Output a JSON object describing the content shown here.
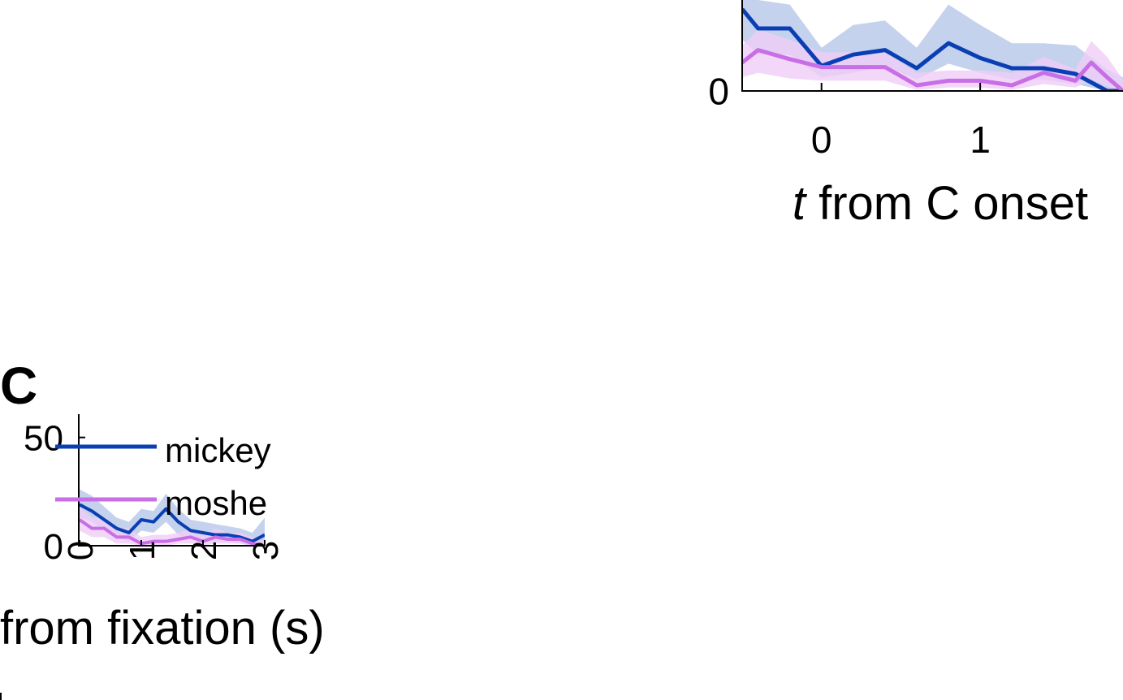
{
  "colors": {
    "mickey": "#0a3fb4",
    "mickey_band": "#b7c7e8",
    "moshe": "#c86ee6",
    "moshe_band": "#efcdf6",
    "axis": "#000000"
  },
  "chart_data": [
    {
      "panel": "",
      "type": "line",
      "xlabel_italic": "t",
      "xlabel": " from C onset",
      "ylabel": "",
      "xlim": [
        -0.5,
        1.9
      ],
      "ylim": [
        0,
        8
      ],
      "xticks": [
        0,
        1
      ],
      "yticks": [
        0
      ],
      "grid": false,
      "legend": "none",
      "series": [
        {
          "key": "mickey",
          "x": [
            -0.5,
            -0.4,
            -0.2,
            0.0,
            0.2,
            0.4,
            0.6,
            0.8,
            1.0,
            1.2,
            1.4,
            1.6,
            1.8,
            1.9
          ],
          "y": [
            7.2,
            5.5,
            5.5,
            2.2,
            3.2,
            3.6,
            2.0,
            4.2,
            2.9,
            2.0,
            2.0,
            1.5,
            0.0,
            0.0
          ],
          "lower": [
            4.5,
            3.2,
            3.2,
            1.2,
            1.6,
            2.2,
            1.0,
            2.4,
            1.6,
            1.0,
            1.0,
            0.6,
            0.0,
            0.0
          ],
          "upper": [
            8.0,
            8.0,
            7.6,
            3.8,
            5.8,
            6.2,
            3.8,
            7.6,
            5.8,
            4.2,
            4.2,
            4.0,
            1.9,
            1.2
          ]
        },
        {
          "key": "moshe",
          "x": [
            -0.5,
            -0.4,
            -0.2,
            0.0,
            0.2,
            0.4,
            0.6,
            0.8,
            1.0,
            1.2,
            1.4,
            1.6,
            1.7,
            1.8,
            1.9
          ],
          "y": [
            2.5,
            3.6,
            2.8,
            2.1,
            2.1,
            2.1,
            0.5,
            0.9,
            0.9,
            0.5,
            1.6,
            0.9,
            2.5,
            1.2,
            0.0
          ],
          "lower": [
            1.2,
            1.6,
            1.1,
            0.9,
            0.9,
            0.9,
            0.1,
            0.3,
            0.3,
            0.1,
            0.6,
            0.3,
            1.0,
            0.4,
            0.0
          ],
          "upper": [
            4.0,
            5.4,
            4.5,
            3.4,
            3.4,
            3.4,
            1.6,
            1.8,
            1.8,
            1.6,
            3.0,
            1.9,
            4.4,
            3.0,
            1.0
          ]
        }
      ]
    },
    {
      "panel": "C",
      "type": "line",
      "xlabel": "from fixation (s)",
      "ylabel": "",
      "xlim": [
        0,
        3
      ],
      "ylim": [
        0,
        60
      ],
      "xticks": [
        0,
        1,
        2,
        3
      ],
      "yticks": [
        0,
        50
      ],
      "grid": false,
      "legend": "top-right",
      "series": [
        {
          "key": "mickey",
          "name": "mickey",
          "x": [
            0.0,
            0.2,
            0.4,
            0.6,
            0.8,
            1.0,
            1.2,
            1.4,
            1.6,
            1.8,
            2.0,
            2.2,
            2.4,
            2.6,
            2.8,
            3.0
          ],
          "y": [
            19,
            16,
            12,
            8,
            6,
            12,
            11,
            17,
            11,
            7,
            6,
            5,
            5,
            4,
            2,
            5
          ],
          "lower": [
            13,
            11,
            7,
            4,
            2,
            7,
            6,
            11,
            5,
            3,
            2,
            2,
            2,
            1,
            0,
            1
          ],
          "upper": [
            26,
            23,
            18,
            13,
            11,
            17,
            16,
            24,
            17,
            12,
            11,
            10,
            9,
            8,
            6,
            13
          ]
        },
        {
          "key": "moshe",
          "name": "moshe",
          "x": [
            0.0,
            0.2,
            0.4,
            0.6,
            0.8,
            1.0,
            1.2,
            1.4,
            1.6,
            1.8,
            2.0,
            2.2,
            2.4,
            2.6,
            2.8,
            3.0
          ],
          "y": [
            12,
            8,
            8,
            4,
            4,
            1,
            2,
            2,
            3,
            4,
            2,
            4,
            3,
            3,
            1,
            0
          ],
          "lower": [
            7,
            4,
            4,
            1,
            1,
            0,
            0,
            0,
            1,
            1,
            0,
            1,
            1,
            1,
            0,
            0
          ],
          "upper": [
            18,
            13,
            13,
            8,
            8,
            4,
            5,
            5,
            6,
            8,
            5,
            8,
            6,
            6,
            4,
            2
          ]
        }
      ]
    }
  ]
}
